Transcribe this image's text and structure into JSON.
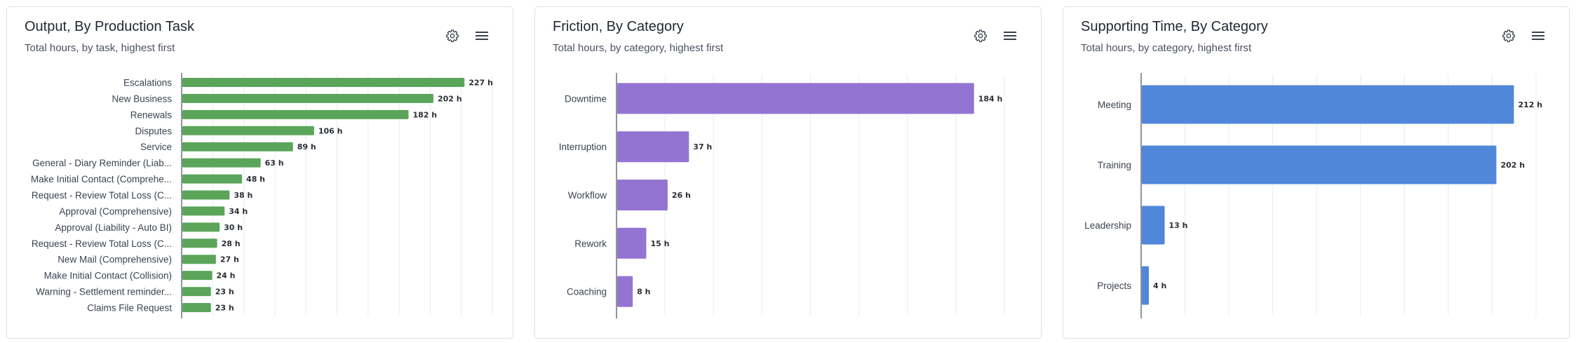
{
  "cards": [
    {
      "title": "Output, By Production Task",
      "subtitle": "Total hours, by task, highest first",
      "settings_icon": "gear-icon",
      "menu_icon": "hamburger-menu-icon"
    },
    {
      "title": "Friction, By Category",
      "subtitle": "Total hours, by category, highest first",
      "settings_icon": "gear-icon",
      "menu_icon": "hamburger-menu-icon"
    },
    {
      "title": "Supporting Time, By Category",
      "subtitle": "Total hours, by category, highest first",
      "settings_icon": "gear-icon",
      "menu_icon": "hamburger-menu-icon"
    }
  ],
  "chart_data": [
    {
      "type": "bar",
      "orientation": "horizontal",
      "title": "Output, By Production Task",
      "subtitle": "Total hours, by task, highest first",
      "unit_suffix": " h",
      "categories": [
        "Escalations",
        "New Business",
        "Renewals",
        "Disputes",
        "Service",
        "General - Diary Reminder (Liab...",
        "Make Initial Contact (Comprehe...",
        "Request - Review Total Loss (C...",
        "Approval (Comprehensive)",
        "Approval (Liability - Auto BI)",
        "Request - Review Total Loss (C...",
        "New Mail (Comprehensive)",
        "Make Initial Contact (Collision)",
        "Warning - Settlement reminder...",
        "Claims File Request"
      ],
      "values": [
        227,
        202,
        182,
        106,
        89,
        63,
        48,
        38,
        34,
        30,
        28,
        27,
        24,
        23,
        23
      ],
      "xlim": [
        0,
        250
      ],
      "grid": true,
      "color": "#5ba55b"
    },
    {
      "type": "bar",
      "orientation": "horizontal",
      "title": "Friction, By Category",
      "subtitle": "Total hours, by category, highest first",
      "unit_suffix": " h",
      "categories": [
        "Downtime",
        "Interruption",
        "Workflow",
        "Rework",
        "Coaching"
      ],
      "values": [
        184,
        37,
        26,
        15,
        8
      ],
      "xlim": [
        0,
        200
      ],
      "grid": true,
      "color": "#9374d2"
    },
    {
      "type": "bar",
      "orientation": "horizontal",
      "title": "Supporting Time, By Category",
      "subtitle": "Total hours, by category, highest first",
      "unit_suffix": " h",
      "categories": [
        "Meeting",
        "Training",
        "Leadership",
        "Projects"
      ],
      "values": [
        212,
        202,
        13,
        4
      ],
      "xlim": [
        0,
        225
      ],
      "grid": true,
      "color": "#5087d9"
    }
  ]
}
